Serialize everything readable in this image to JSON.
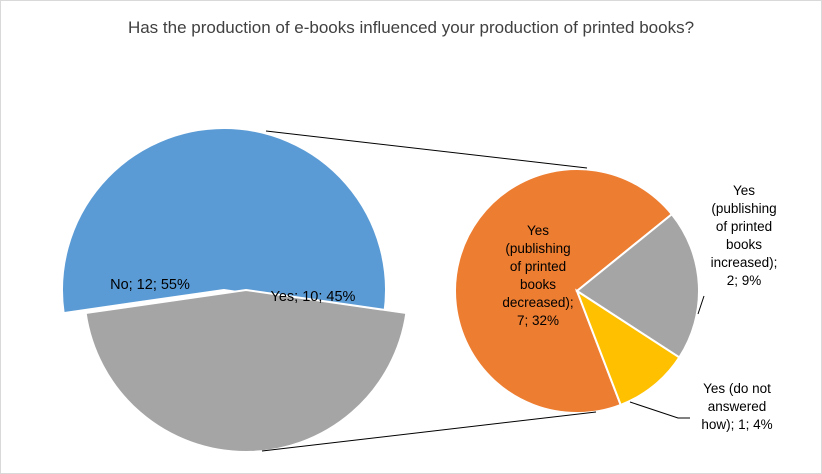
{
  "chart_data": {
    "type": "pie",
    "title": "Has the production of e-books influenced your production of printed books?",
    "main_pie": {
      "slices": [
        {
          "label": "No; 12; 55%",
          "category": "No",
          "value": 12,
          "percent": 55,
          "color": "#5B9BD5"
        },
        {
          "label": "Yes; 10; 45%",
          "category": "Yes",
          "value": 10,
          "percent": 45,
          "color": "#A5A5A5"
        }
      ]
    },
    "sub_pie": {
      "parent": "Yes",
      "slices": [
        {
          "label_lines": [
            "Yes",
            "(publishing",
            "of printed",
            "books",
            "decreased);",
            "7; 32%"
          ],
          "category": "Yes (publishing of printed books decreased)",
          "value": 7,
          "percent": 32,
          "color": "#ED7D31"
        },
        {
          "label_lines": [
            "Yes",
            "(publishing",
            "of printed",
            "books",
            "increased);",
            "2; 9%"
          ],
          "category": "Yes (publishing of printed books increased)",
          "value": 2,
          "percent": 9,
          "color": "#A5A5A5"
        },
        {
          "label_lines": [
            "Yes (do not",
            "answered",
            "how); 1; 4%"
          ],
          "category": "Yes (do not answered how)",
          "value": 1,
          "percent": 4,
          "color": "#FFC000"
        }
      ]
    },
    "legend": "none"
  }
}
